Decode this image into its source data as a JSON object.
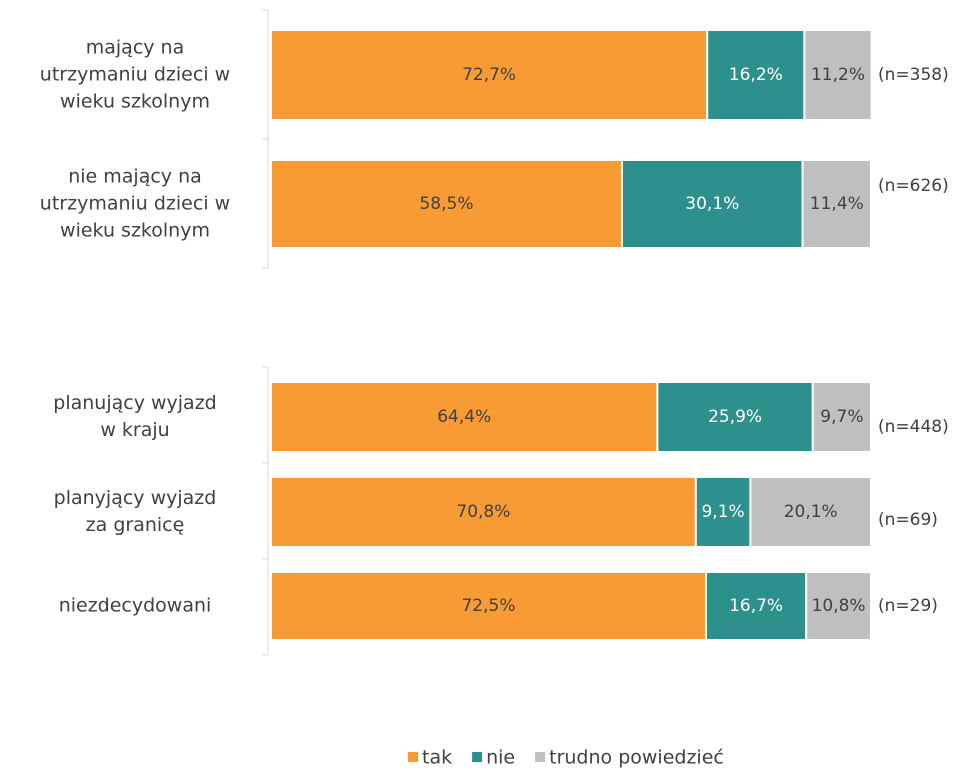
{
  "chart_data": {
    "type": "stacked_barh",
    "categories": [
      "mający na\nutrzymaniu dzieci w\nwieku szkolnym",
      "nie mający na\nutrzymaniu dzieci w\nwieku szkolnym",
      null,
      "planujący wyjazd\nw kraju",
      "planyjący wyjazd\nza granicę",
      "niezdecydowani"
    ],
    "series": [
      {
        "name": "tak",
        "color": "#f99b35",
        "values": [
          72.7,
          58.5,
          null,
          64.4,
          70.8,
          72.5
        ],
        "value_labels": [
          "72,7%",
          "58,5%",
          null,
          "64,4%",
          "70,8%",
          "72,5%"
        ]
      },
      {
        "name": "nie",
        "color": "#2e908c",
        "values": [
          16.2,
          30.1,
          null,
          25.9,
          9.1,
          16.7
        ],
        "value_labels": [
          "16,2%",
          "30,1%",
          null,
          "25,9%",
          "9,1%",
          "16,7%"
        ]
      },
      {
        "name": "trudno powiedzieć",
        "color": "#bfbfbf",
        "values": [
          11.2,
          11.4,
          null,
          9.7,
          20.1,
          10.8
        ],
        "value_labels": [
          "11,2%",
          "11,4%",
          null,
          "9,7%",
          "20,1%",
          "10,8%"
        ]
      }
    ],
    "annotations": [
      "(n=358)",
      "(n=626)",
      null,
      "(n=448)",
      "(n=69)",
      "(n=29)"
    ],
    "xlim": [
      0,
      100
    ],
    "legend": "bottom"
  }
}
